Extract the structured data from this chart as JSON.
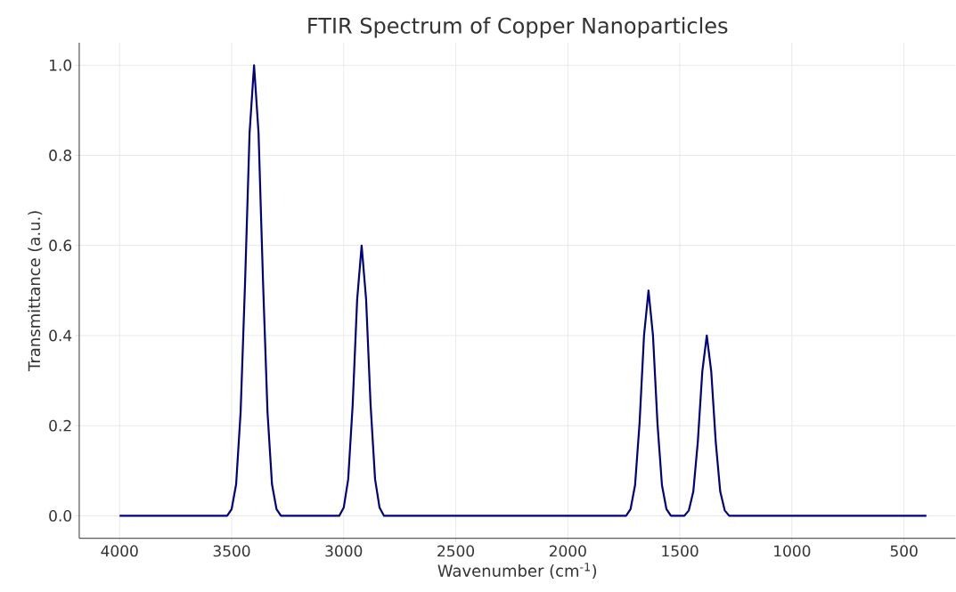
{
  "chart_data": {
    "type": "line",
    "title": "FTIR Spectrum of Copper Nanoparticles",
    "xlabel": "Wavenumber (cm$^{-1}$)",
    "ylabel": "Transmittance (a.u.)",
    "x": [
      4000,
      3520,
      3500,
      3480,
      3460,
      3440,
      3420,
      3400,
      3380,
      3360,
      3340,
      3320,
      3300,
      3280,
      3040,
      3020,
      3000,
      2980,
      2960,
      2940,
      2920,
      2900,
      2880,
      2860,
      2840,
      2820,
      1760,
      1740,
      1720,
      1700,
      1680,
      1660,
      1640,
      1620,
      1600,
      1580,
      1560,
      1540,
      1500,
      1480,
      1460,
      1440,
      1420,
      1400,
      1380,
      1360,
      1340,
      1320,
      1300,
      1280,
      400
    ],
    "series": [
      {
        "color": "#000080",
        "values": [
          0,
          0,
          0.015,
          0.07,
          0.23,
          0.52,
          0.85,
          1.0,
          0.85,
          0.52,
          0.23,
          0.07,
          0.015,
          0,
          0,
          0,
          0.018,
          0.081,
          0.246,
          0.48,
          0.6,
          0.48,
          0.246,
          0.081,
          0.018,
          0,
          0,
          0,
          0.015,
          0.068,
          0.205,
          0.4,
          0.5,
          0.4,
          0.205,
          0.068,
          0.015,
          0,
          0,
          0,
          0.012,
          0.054,
          0.164,
          0.32,
          0.4,
          0.32,
          0.164,
          0.054,
          0.012,
          0,
          0
        ]
      }
    ],
    "xlim": [
      4180,
      270
    ],
    "ylim": [
      -0.05,
      1.05
    ],
    "xticks": [
      4000,
      3500,
      3000,
      2500,
      2000,
      1500,
      1000,
      500
    ],
    "yticks": [
      {
        "value": 0,
        "label": "0.0"
      },
      {
        "value": 0.2,
        "label": "0.2"
      },
      {
        "value": 0.4,
        "label": "0.4"
      },
      {
        "value": 0.6,
        "label": "0.6"
      },
      {
        "value": 0.8,
        "label": "0.8"
      },
      {
        "value": 1.0,
        "label": "1.0"
      }
    ],
    "grid": true,
    "line_style": "solid",
    "marker": "none"
  }
}
